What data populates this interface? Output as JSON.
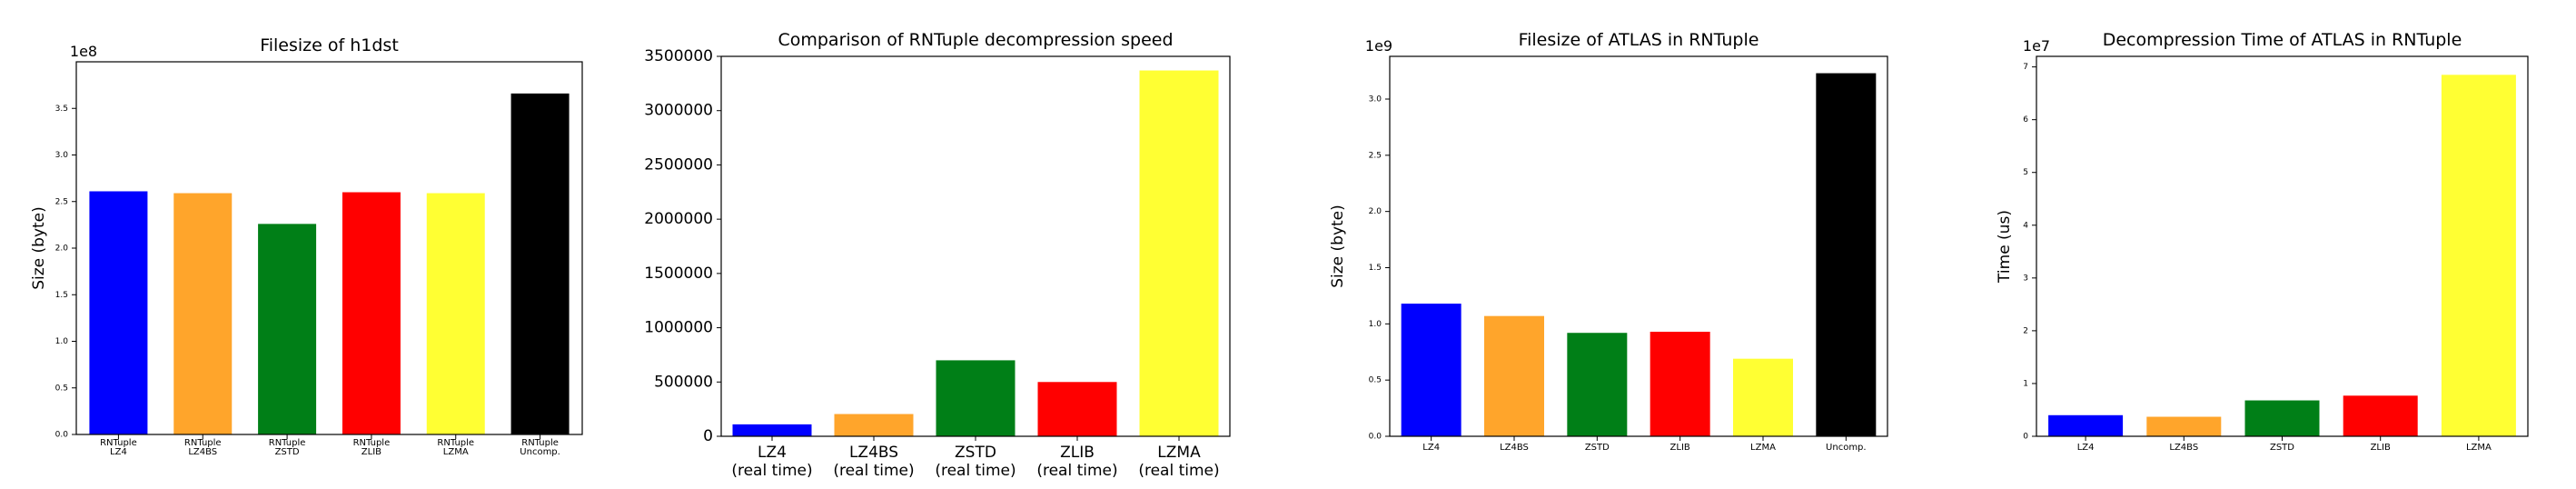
{
  "chart_data": [
    {
      "type": "bar",
      "title": "Filesize of h1dst",
      "xlabel": "",
      "ylabel": "Size (byte)",
      "scale_label": "1e8",
      "ylim": [
        0,
        4.0
      ],
      "yticks": [
        "0.0",
        "0.5",
        "1.0",
        "1.5",
        "2.0",
        "2.5",
        "3.0",
        "3.5"
      ],
      "categories": [
        [
          "RNTuple",
          "LZ4"
        ],
        [
          "RNTuple",
          "LZ4BS"
        ],
        [
          "RNTuple",
          "ZSTD"
        ],
        [
          "RNTuple",
          "ZLIB"
        ],
        [
          "RNTuple",
          "LZMA"
        ],
        [
          "RNTuple",
          "Uncomp."
        ]
      ],
      "values": [
        2.61,
        2.59,
        2.26,
        2.6,
        2.59,
        3.66
      ],
      "colors": [
        "#0000ff",
        "#ffa52b",
        "#007f17",
        "#ff0000",
        "#ffff33",
        "#000000"
      ],
      "grid": false
    },
    {
      "type": "bar",
      "title": "Comparison of RNTuple decompression speed",
      "xlabel": "",
      "ylabel": "",
      "scale_label": "",
      "ylim": [
        0,
        3500000
      ],
      "yticks": [
        "0",
        "500000",
        "1000000",
        "1500000",
        "2000000",
        "2500000",
        "3000000",
        "3500000"
      ],
      "categories": [
        [
          "LZ4",
          "(real time)"
        ],
        [
          "LZ4BS",
          "(real time)"
        ],
        [
          "ZSTD",
          "(real time)"
        ],
        [
          "ZLIB",
          "(real time)"
        ],
        [
          "LZMA",
          "(real time)"
        ]
      ],
      "values": [
        110000,
        205000,
        700000,
        500000,
        3370000
      ],
      "colors": [
        "#0000ff",
        "#ffa52b",
        "#007f17",
        "#ff0000",
        "#ffff33"
      ],
      "grid": false
    },
    {
      "type": "bar",
      "title": "Filesize of ATLAS in RNTuple",
      "xlabel": "",
      "ylabel": "Size (byte)",
      "scale_label": "1e9",
      "ylim": [
        0,
        3.38
      ],
      "yticks": [
        "0.0",
        "0.5",
        "1.0",
        "1.5",
        "2.0",
        "2.5",
        "3.0"
      ],
      "categories": [
        [
          "LZ4"
        ],
        [
          "LZ4BS"
        ],
        [
          "ZSTD"
        ],
        [
          "ZLIB"
        ],
        [
          "LZMA"
        ],
        [
          "Uncomp."
        ]
      ],
      "values": [
        1.18,
        1.07,
        0.92,
        0.93,
        0.69,
        3.23
      ],
      "colors": [
        "#0000ff",
        "#ffa52b",
        "#007f17",
        "#ff0000",
        "#ffff33",
        "#000000"
      ],
      "grid": false
    },
    {
      "type": "bar",
      "title": "Decompression Time of ATLAS in RNTuple",
      "xlabel": "",
      "ylabel": "Time (us)",
      "scale_label": "1e7",
      "ylim": [
        0,
        7.2
      ],
      "yticks": [
        "0",
        "1",
        "2",
        "3",
        "4",
        "5",
        "6",
        "7"
      ],
      "categories": [
        [
          "LZ4"
        ],
        [
          "LZ4BS"
        ],
        [
          "ZSTD"
        ],
        [
          "ZLIB"
        ],
        [
          "LZMA"
        ]
      ],
      "values": [
        0.4,
        0.37,
        0.68,
        0.77,
        6.85
      ],
      "colors": [
        "#0000ff",
        "#ffa52b",
        "#007f17",
        "#ff0000",
        "#ffff33"
      ],
      "grid": false
    }
  ]
}
